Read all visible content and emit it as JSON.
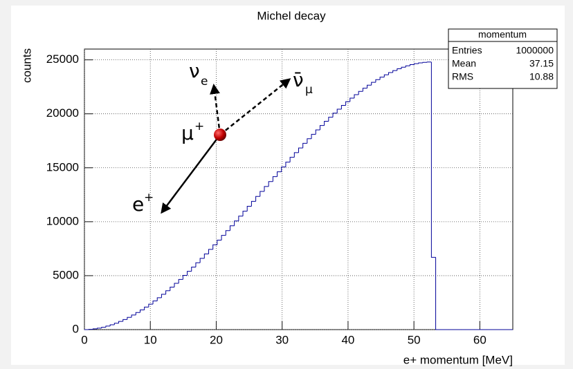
{
  "chart_data": {
    "type": "histogram",
    "title": "Michel decay",
    "x_label": "e+ momentum [MeV]",
    "y_label": "counts",
    "color": "#000099",
    "bins": [
      0,
      0.65,
      1.3,
      1.95,
      2.6,
      3.25,
      3.9,
      4.55,
      5.2,
      5.85,
      6.5,
      7.15,
      7.8,
      8.45,
      9.1,
      9.75,
      10.4,
      11.05,
      11.7,
      12.35,
      13,
      13.65,
      14.3,
      14.95,
      15.6,
      16.25,
      16.9,
      17.55,
      18.2,
      18.85,
      19.5,
      20.15,
      20.8,
      21.45,
      22.1,
      22.75,
      23.4,
      24.05,
      24.7,
      25.35,
      26,
      26.65,
      27.3,
      27.95,
      28.6,
      29.25,
      29.9,
      30.55,
      31.2,
      31.85,
      32.5,
      33.15,
      33.8,
      34.45,
      35.1,
      35.75,
      36.4,
      37.05,
      37.7,
      38.35,
      39,
      39.65,
      40.3,
      40.95,
      41.6,
      42.25,
      42.9,
      43.55,
      44.2,
      44.85,
      45.5,
      46.15,
      46.8,
      47.45,
      48.1,
      48.75,
      49.4,
      50.05,
      50.7,
      51.35,
      52,
      52.65,
      53.3,
      53.95,
      54.6,
      55.25,
      55.9,
      56.55,
      57.2,
      57.85,
      58.5,
      59.15,
      59.8,
      60.45,
      61.1,
      61.75,
      62.4,
      63.05,
      63.7,
      64.35,
      65
    ],
    "values": [
      3,
      25,
      69,
      134,
      220,
      326,
      451,
      595,
      758,
      938,
      1136,
      1350,
      1581,
      1827,
      2088,
      2364,
      2654,
      2957,
      3273,
      3601,
      3941,
      4292,
      4654,
      5026,
      5407,
      5797,
      6196,
      6603,
      7016,
      7437,
      7863,
      8296,
      8733,
      9175,
      9621,
      10070,
      10522,
      10976,
      11432,
      11890,
      12347,
      12805,
      13263,
      13719,
      14174,
      14627,
      15076,
      15523,
      15966,
      16404,
      16838,
      17266,
      17688,
      18103,
      18511,
      18912,
      19305,
      19688,
      20062,
      20426,
      20780,
      21122,
      21453,
      21772,
      22079,
      22372,
      22651,
      22915,
      23165,
      23399,
      23618,
      23820,
      24004,
      24171,
      24320,
      24450,
      24560,
      24651,
      24721,
      24770,
      24797,
      6700,
      0,
      0,
      0,
      0,
      0,
      0,
      0,
      0,
      0,
      0,
      0,
      0,
      0,
      0,
      0,
      0,
      0,
      0
    ],
    "xlim": [
      0,
      65
    ],
    "ylim": [
      0,
      26000
    ],
    "xticks": [
      0,
      10,
      20,
      30,
      40,
      50,
      60
    ],
    "yticks": [
      0,
      5000,
      10000,
      15000,
      20000,
      25000
    ],
    "grid": true,
    "stats": {
      "title": "momentum",
      "rows": [
        [
          "Entries",
          "1000000"
        ],
        [
          "Mean",
          "37.15"
        ],
        [
          "RMS",
          "10.88"
        ]
      ]
    },
    "annotations": {
      "nu_e": [
        "ν",
        "e"
      ],
      "nu_mu_bar": [
        "ν̄",
        "μ"
      ],
      "muon": [
        "μ",
        "+"
      ],
      "positron": [
        "e",
        "+"
      ]
    }
  }
}
